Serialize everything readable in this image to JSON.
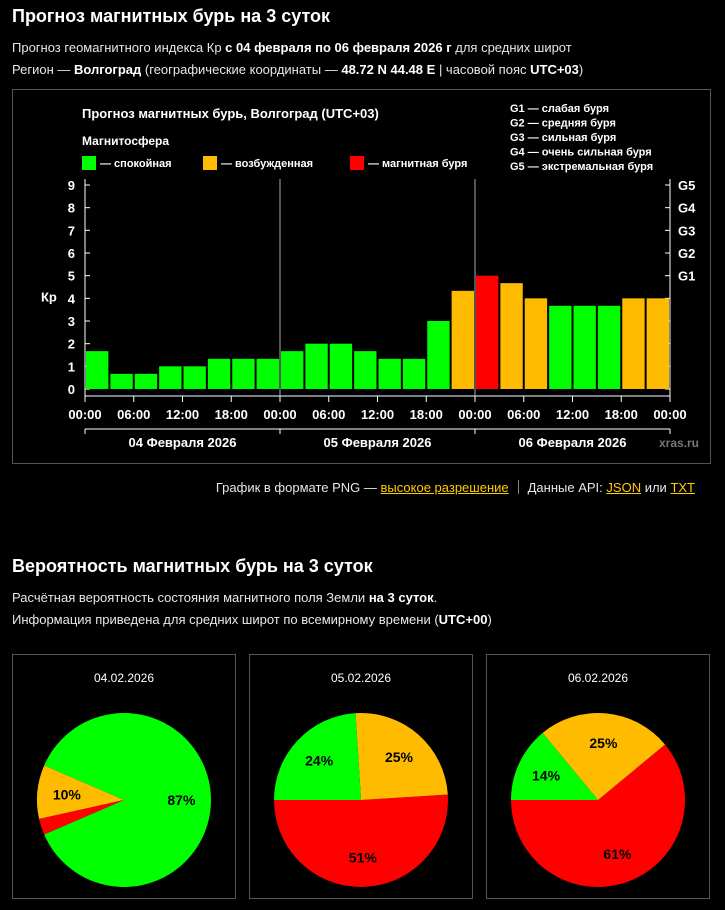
{
  "header": {
    "title": "Прогноз магнитных бурь на 3 суток",
    "line1_pre": "Прогноз геомагнитного индекса Кр",
    "line1_bold": "с 04 февраля по 06 февраля 2026 г",
    "line1_post": "для средних широт",
    "line2_pre": "Регион —",
    "line2_region": "Волгоград",
    "line2_mid": "(географические координаты —",
    "line2_coords": "48.72 N 44.48 E",
    "line2_mid2": "| часовой пояс",
    "line2_tz": "UTC+03",
    "line2_post": ")"
  },
  "chart_data": {
    "type": "bar",
    "title": "Прогноз магнитных бурь, Волгоград (UTC+03)",
    "legend_title": "Магнитосфера",
    "legend": [
      {
        "label": "— спокойная",
        "color": "#00ff00"
      },
      {
        "label": "— возбужденная",
        "color": "#ffbb00"
      },
      {
        "label": "— магнитная буря",
        "color": "#ff0000"
      }
    ],
    "g_legend": [
      "G1 — слабая буря",
      "G2 — средняя буря",
      "G3 — сильная буря",
      "G4 — очень сильная буря",
      "G5 — экстремальная буря"
    ],
    "ylabel": "Кр",
    "ylim": [
      0,
      9
    ],
    "yticks": [
      "0",
      "1",
      "2",
      "3",
      "4",
      "5",
      "6",
      "7",
      "8",
      "9"
    ],
    "g_ticks": [
      {
        "label": "G1",
        "value": 5
      },
      {
        "label": "G2",
        "value": 6
      },
      {
        "label": "G3",
        "value": 7
      },
      {
        "label": "G4",
        "value": 8
      },
      {
        "label": "G5",
        "value": 9
      }
    ],
    "xtick_labels": [
      "00:00",
      "06:00",
      "12:00",
      "18:00",
      "00:00",
      "06:00",
      "12:00",
      "18:00",
      "00:00",
      "06:00",
      "12:00",
      "18:00",
      "00:00"
    ],
    "days": [
      "04 Февраля 2026",
      "05 Февраля 2026",
      "06 Февраля 2026"
    ],
    "values": [
      1.67,
      0.67,
      0.67,
      1.0,
      1.0,
      1.33,
      1.33,
      1.33,
      1.67,
      2.0,
      2.0,
      1.67,
      1.33,
      1.33,
      3.0,
      4.33,
      5.0,
      4.67,
      4.0,
      3.67,
      3.67,
      3.67,
      4.0,
      4.0
    ],
    "bar_colors": [
      "#00ff00",
      "#00ff00",
      "#00ff00",
      "#00ff00",
      "#00ff00",
      "#00ff00",
      "#00ff00",
      "#00ff00",
      "#00ff00",
      "#00ff00",
      "#00ff00",
      "#00ff00",
      "#00ff00",
      "#00ff00",
      "#00ff00",
      "#ffbb00",
      "#ff0000",
      "#ffbb00",
      "#ffbb00",
      "#00ff00",
      "#00ff00",
      "#00ff00",
      "#ffbb00",
      "#ffbb00"
    ],
    "watermark": "xras.ru"
  },
  "links": {
    "png_text": "График в формате PNG —",
    "png_link": "высокое разрешение",
    "api_text": "Данные API:",
    "json_link": "JSON",
    "or_text": "или",
    "txt_link": "TXT"
  },
  "probability": {
    "title": "Вероятность магнитных бурь на 3 суток",
    "line1_pre": "Расчётная вероятность состояния магнитного поля Земли",
    "line1_bold": "на 3 суток",
    "line1_post": ".",
    "line2_pre": "Информация приведена для средних широт по всемирному времени (",
    "line2_bold": "UTC+00",
    "line2_post": ")",
    "pies": [
      {
        "date": "04.02.2026",
        "quiet": 87,
        "active": 10,
        "storm": 3,
        "labels": {
          "quiet": "87%",
          "active": "10%",
          "storm": ""
        }
      },
      {
        "date": "05.02.2026",
        "quiet": 24,
        "active": 25,
        "storm": 51,
        "labels": {
          "quiet": "24%",
          "active": "25%",
          "storm": "51%"
        }
      },
      {
        "date": "06.02.2026",
        "quiet": 14,
        "active": 25,
        "storm": 61,
        "labels": {
          "quiet": "14%",
          "active": "25%",
          "storm": "61%"
        }
      }
    ],
    "colors": {
      "quiet": "#00ff00",
      "active": "#ffbb00",
      "storm": "#ff0000"
    }
  }
}
